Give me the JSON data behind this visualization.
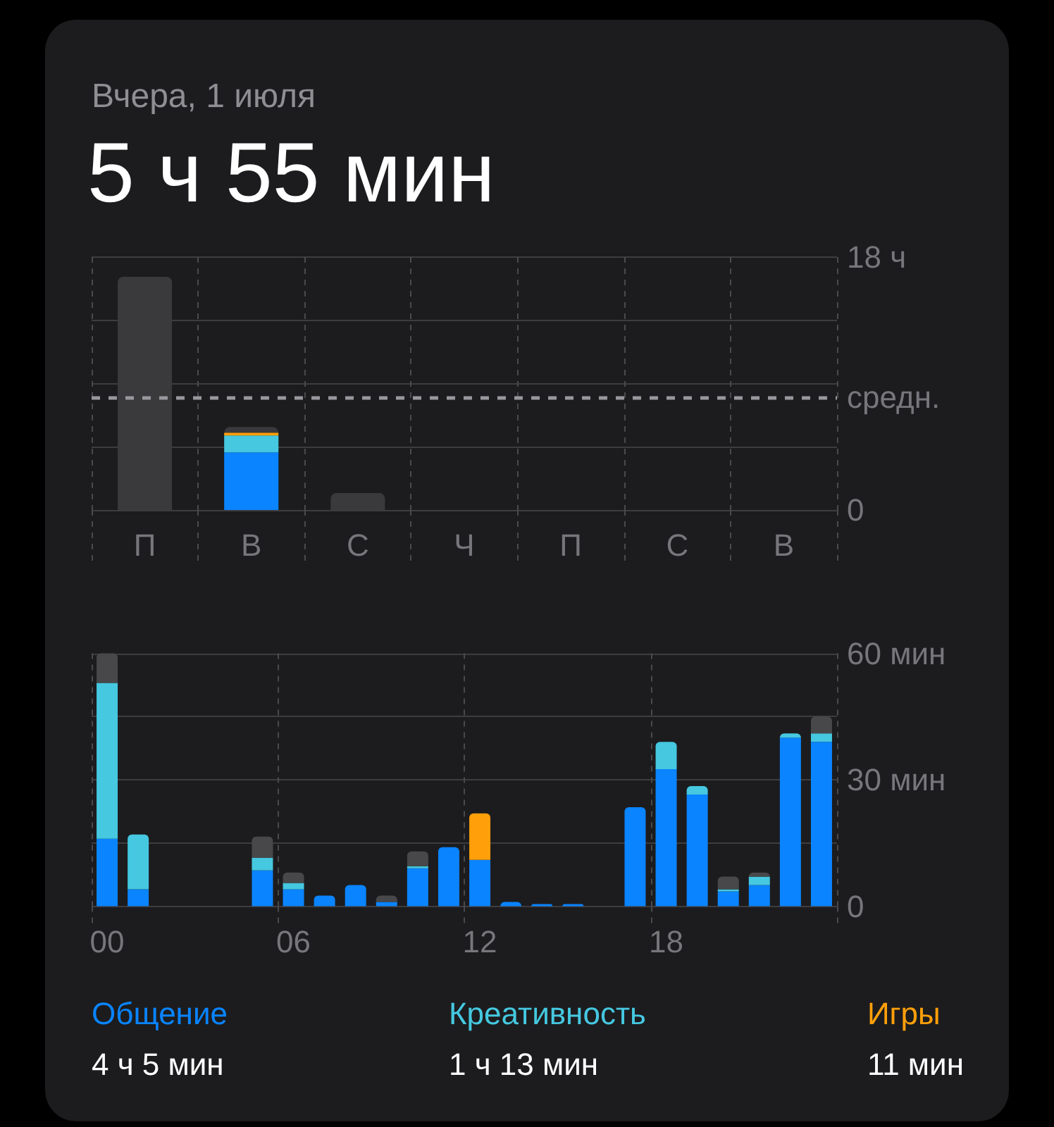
{
  "chart_data": [
    {
      "type": "bar",
      "subtitle": "Вчера, 1 июля",
      "title": "5 ч 55 мин",
      "categories": [
        "П",
        "В",
        "С",
        "Ч",
        "П",
        "С",
        "В"
      ],
      "stacked": true,
      "series": [
        {
          "color": "#0a84ff",
          "values": [
            null,
            4.1,
            null,
            null,
            null,
            null,
            null
          ]
        },
        {
          "color": "#45c8e0",
          "values": [
            null,
            1.2,
            null,
            null,
            null,
            null,
            null
          ]
        },
        {
          "color": "#ff9f0a",
          "values": [
            null,
            0.2,
            null,
            null,
            null,
            null,
            null
          ]
        },
        {
          "color": "#3a3a3c",
          "values": [
            16.6,
            0.4,
            1.2,
            null,
            null,
            null,
            null
          ]
        }
      ],
      "ylim": [
        0,
        18
      ],
      "yticks": [
        0,
        {
          "value": 4.5,
          "label": null
        },
        {
          "value": 9,
          "label": null
        },
        {
          "value": 13.5,
          "label": null
        },
        {
          "value": 18,
          "label": "18 ч"
        }
      ],
      "ref_lines": [
        {
          "axis": "y",
          "value": 8,
          "label": "средн.",
          "line_style": "dashed",
          "color": "#98989d"
        }
      ],
      "grid": true
    },
    {
      "type": "bar",
      "categories": [
        "00",
        null,
        null,
        null,
        null,
        null,
        "06",
        null,
        null,
        null,
        null,
        null,
        "12",
        null,
        null,
        null,
        null,
        null,
        "18",
        null,
        null,
        null,
        null,
        null
      ],
      "stacked": true,
      "series": [
        {
          "name": "Общение",
          "color": "#0a84ff",
          "values": [
            16,
            4,
            null,
            null,
            null,
            8.5,
            4,
            2.5,
            5,
            1,
            9,
            14,
            11,
            1,
            0.5,
            0.5,
            null,
            23.5,
            32.5,
            26.5,
            3.5,
            5,
            40,
            39
          ]
        },
        {
          "name": "Креативность",
          "color": "#45c8e0",
          "values": [
            37,
            13,
            null,
            null,
            null,
            3,
            1.5,
            null,
            null,
            null,
            0.5,
            null,
            null,
            null,
            null,
            null,
            null,
            null,
            6.5,
            2,
            0.5,
            2,
            1,
            2
          ]
        },
        {
          "name": "Игры",
          "color": "#ff9f0a",
          "values": [
            null,
            null,
            null,
            null,
            null,
            null,
            null,
            null,
            null,
            null,
            null,
            null,
            11,
            null,
            null,
            null,
            null,
            null,
            null,
            null,
            null,
            null,
            null,
            null
          ]
        },
        {
          "color": "#48484a",
          "values": [
            7,
            null,
            null,
            null,
            null,
            5,
            2.5,
            null,
            null,
            1.5,
            3.5,
            null,
            null,
            null,
            null,
            null,
            null,
            null,
            null,
            null,
            3,
            1,
            null,
            4
          ]
        }
      ],
      "ylim": [
        0,
        60
      ],
      "yticks": [
        0,
        {
          "value": 15,
          "label": null
        },
        {
          "value": 30,
          "label": "30 мин"
        },
        {
          "value": 45,
          "label": null
        },
        {
          "value": 60,
          "label": "60 мин"
        }
      ],
      "grid": true,
      "legend": "bottom",
      "annotations": [
        "4 ч 5 мин",
        "1 ч 13 мин",
        "11 мин"
      ]
    }
  ]
}
